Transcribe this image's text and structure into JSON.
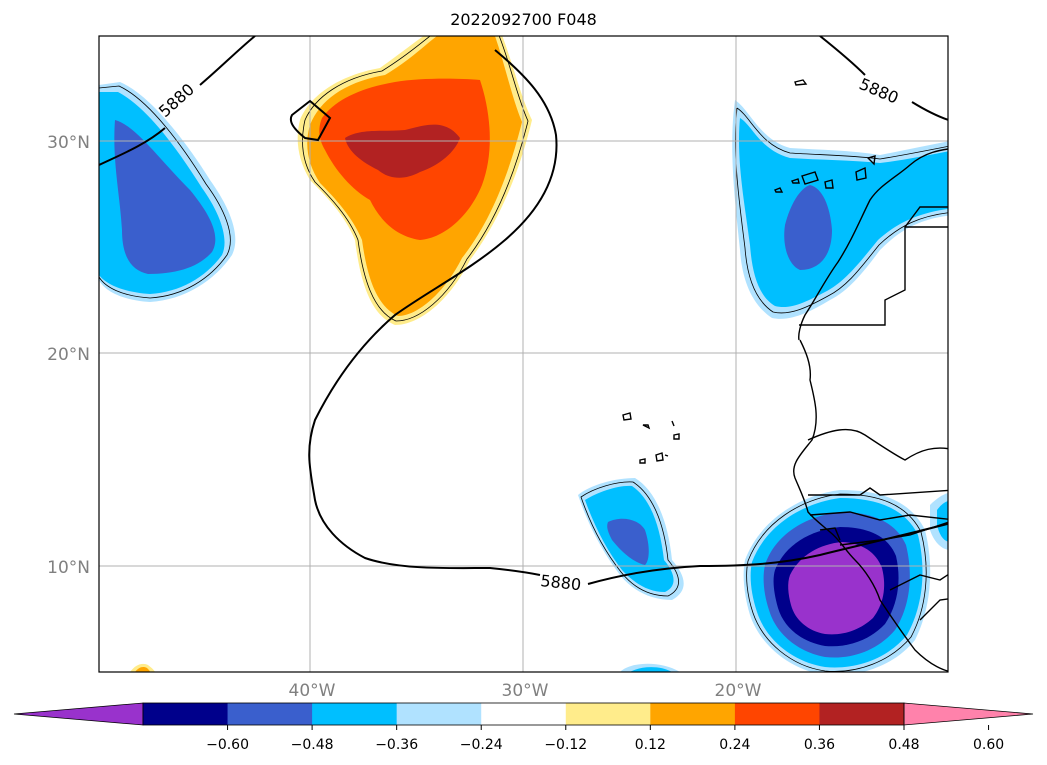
{
  "title": "2022092700 F048",
  "map": {
    "lon_range": [
      -49,
      -9
    ],
    "lat_range": [
      5,
      35
    ],
    "lat_ticks": [
      {
        "value": 30,
        "label": "30°N"
      },
      {
        "value": 20,
        "label": "20°N"
      },
      {
        "value": 10,
        "label": "10°N"
      }
    ],
    "lon_ticks": [
      {
        "value": -40,
        "label": "40°W"
      },
      {
        "value": -30,
        "label": "30°W"
      },
      {
        "value": -20,
        "label": "20°W"
      }
    ],
    "gridlines": true,
    "contour_label": "5880"
  },
  "colorbar": {
    "colors": [
      "#9932cc",
      "#00008b",
      "#3a5fcd",
      "#00bfff",
      "#b0e2ff",
      "#ffffff",
      "#ffec8b",
      "#ffa500",
      "#ff4500",
      "#b22222",
      "#ff82ab"
    ],
    "labels": [
      "−0.60",
      "−0.48",
      "−0.36",
      "−0.24",
      "−0.12",
      "0.12",
      "0.24",
      "0.36",
      "0.48",
      "0.60"
    ],
    "extend": "both"
  }
}
